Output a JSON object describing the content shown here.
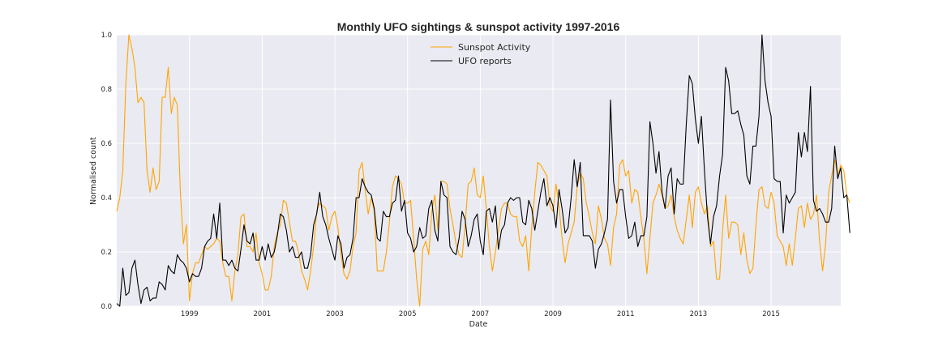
{
  "chart_data": {
    "type": "line",
    "title": "Monthly UFO sightings & sunspot activity 1997-2016",
    "xlabel": "Date",
    "ylabel": "Normalised count",
    "xlim": [
      "1997-01",
      "2016-12"
    ],
    "ylim": [
      0.0,
      1.0
    ],
    "x_ticks": [
      "1999",
      "2001",
      "2003",
      "2005",
      "2007",
      "2009",
      "2011",
      "2013",
      "2015"
    ],
    "y_ticks": [
      "0.0",
      "0.2",
      "0.4",
      "0.6",
      "0.8",
      "1.0"
    ],
    "grid": true,
    "legend": "top-center",
    "background": "#eaeaf2",
    "x_start": "1997-01",
    "x_step": "1 month",
    "series": [
      {
        "name": "Sunspot Activity",
        "color": "#ffa500",
        "values": [
          0.35,
          0.4,
          0.5,
          0.82,
          1.0,
          0.95,
          0.88,
          0.75,
          0.77,
          0.75,
          0.5,
          0.42,
          0.51,
          0.43,
          0.46,
          0.77,
          0.77,
          0.88,
          0.71,
          0.77,
          0.74,
          0.42,
          0.23,
          0.3,
          0.02,
          0.12,
          0.16,
          0.16,
          0.19,
          0.22,
          0.21,
          0.22,
          0.23,
          0.25,
          0.24,
          0.16,
          0.11,
          0.11,
          0.02,
          0.13,
          0.19,
          0.33,
          0.34,
          0.22,
          0.22,
          0.2,
          0.27,
          0.16,
          0.12,
          0.06,
          0.06,
          0.11,
          0.22,
          0.27,
          0.3,
          0.39,
          0.38,
          0.31,
          0.24,
          0.24,
          0.2,
          0.13,
          0.1,
          0.06,
          0.13,
          0.22,
          0.35,
          0.38,
          0.37,
          0.36,
          0.28,
          0.33,
          0.35,
          0.29,
          0.19,
          0.12,
          0.1,
          0.13,
          0.22,
          0.27,
          0.5,
          0.53,
          0.43,
          0.34,
          0.4,
          0.35,
          0.13,
          0.13,
          0.13,
          0.2,
          0.31,
          0.44,
          0.48,
          0.47,
          0.45,
          0.38,
          0.38,
          0.39,
          0.25,
          0.1,
          0.0,
          0.21,
          0.24,
          0.19,
          0.35,
          0.41,
          0.28,
          0.46,
          0.46,
          0.45,
          0.36,
          0.3,
          0.23,
          0.19,
          0.18,
          0.3,
          0.45,
          0.46,
          0.51,
          0.41,
          0.4,
          0.48,
          0.36,
          0.22,
          0.13,
          0.2,
          0.28,
          0.36,
          0.38,
          0.38,
          0.34,
          0.33,
          0.33,
          0.24,
          0.22,
          0.26,
          0.13,
          0.29,
          0.42,
          0.53,
          0.52,
          0.5,
          0.48,
          0.37,
          0.35,
          0.45,
          0.37,
          0.25,
          0.16,
          0.23,
          0.27,
          0.31,
          0.44,
          0.49,
          0.47,
          0.38,
          0.33,
          0.27,
          0.23,
          0.37,
          0.32,
          0.25,
          0.23,
          0.15,
          0.29,
          0.34,
          0.52,
          0.54,
          0.48,
          0.5,
          0.38,
          0.43,
          0.42,
          0.33,
          0.25,
          0.12,
          0.25,
          0.38,
          0.41,
          0.45,
          0.41,
          0.36,
          0.37,
          0.41,
          0.33,
          0.28,
          0.25,
          0.23,
          0.32,
          0.41,
          0.29,
          0.42,
          0.44,
          0.38,
          0.34,
          0.37,
          0.22,
          0.24,
          0.1,
          0.1,
          0.28,
          0.41,
          0.25,
          0.31,
          0.31,
          0.3,
          0.19,
          0.27,
          0.17,
          0.12,
          0.14,
          0.3,
          0.43,
          0.44,
          0.37,
          0.36,
          0.42,
          0.38,
          0.26,
          0.24,
          0.22,
          0.15,
          0.23,
          0.15,
          0.25,
          0.36,
          0.37,
          0.29,
          0.38,
          0.32,
          0.34,
          0.41,
          0.24,
          0.13,
          0.23,
          0.42,
          0.48,
          0.54,
          0.48,
          0.52,
          0.5,
          0.41,
          0.38
        ]
      },
      {
        "name": "UFO reports",
        "color": "#000000",
        "values": [
          0.01,
          0.0,
          0.14,
          0.04,
          0.05,
          0.14,
          0.17,
          0.08,
          0.01,
          0.06,
          0.07,
          0.02,
          0.03,
          0.03,
          0.09,
          0.08,
          0.06,
          0.15,
          0.13,
          0.12,
          0.19,
          0.17,
          0.16,
          0.14,
          0.09,
          0.12,
          0.11,
          0.11,
          0.14,
          0.22,
          0.24,
          0.25,
          0.34,
          0.25,
          0.38,
          0.17,
          0.17,
          0.15,
          0.17,
          0.14,
          0.13,
          0.21,
          0.3,
          0.24,
          0.23,
          0.27,
          0.17,
          0.17,
          0.22,
          0.17,
          0.23,
          0.18,
          0.2,
          0.26,
          0.34,
          0.33,
          0.28,
          0.2,
          0.22,
          0.18,
          0.18,
          0.2,
          0.14,
          0.14,
          0.19,
          0.3,
          0.34,
          0.42,
          0.33,
          0.3,
          0.25,
          0.21,
          0.17,
          0.26,
          0.23,
          0.14,
          0.18,
          0.19,
          0.25,
          0.4,
          0.4,
          0.47,
          0.44,
          0.42,
          0.41,
          0.36,
          0.25,
          0.24,
          0.35,
          0.33,
          0.33,
          0.38,
          0.39,
          0.48,
          0.35,
          0.39,
          0.27,
          0.25,
          0.2,
          0.22,
          0.29,
          0.25,
          0.26,
          0.36,
          0.39,
          0.28,
          0.24,
          0.46,
          0.41,
          0.4,
          0.22,
          0.2,
          0.19,
          0.25,
          0.35,
          0.32,
          0.22,
          0.26,
          0.32,
          0.34,
          0.24,
          0.19,
          0.35,
          0.36,
          0.31,
          0.37,
          0.21,
          0.28,
          0.3,
          0.38,
          0.4,
          0.39,
          0.4,
          0.4,
          0.31,
          0.3,
          0.39,
          0.36,
          0.28,
          0.35,
          0.42,
          0.47,
          0.37,
          0.4,
          0.37,
          0.29,
          0.43,
          0.36,
          0.27,
          0.29,
          0.4,
          0.54,
          0.44,
          0.53,
          0.26,
          0.26,
          0.26,
          0.24,
          0.14,
          0.21,
          0.23,
          0.27,
          0.32,
          0.76,
          0.46,
          0.38,
          0.43,
          0.43,
          0.33,
          0.25,
          0.26,
          0.31,
          0.22,
          0.26,
          0.26,
          0.33,
          0.68,
          0.6,
          0.49,
          0.57,
          0.42,
          0.36,
          0.48,
          0.51,
          0.34,
          0.47,
          0.45,
          0.45,
          0.67,
          0.85,
          0.82,
          0.69,
          0.6,
          0.7,
          0.5,
          0.33,
          0.23,
          0.33,
          0.37,
          0.48,
          0.56,
          0.88,
          0.83,
          0.71,
          0.71,
          0.72,
          0.67,
          0.63,
          0.48,
          0.45,
          0.59,
          0.59,
          0.7,
          1.0,
          0.83,
          0.75,
          0.7,
          0.47,
          0.46,
          0.46,
          0.27,
          0.41,
          0.38,
          0.4,
          0.42,
          0.64,
          0.55,
          0.64,
          0.57,
          0.81,
          0.39,
          0.35,
          0.36,
          0.34,
          0.31,
          0.31,
          0.36,
          0.59,
          0.47,
          0.51,
          0.4,
          0.41,
          0.27
        ]
      }
    ]
  }
}
